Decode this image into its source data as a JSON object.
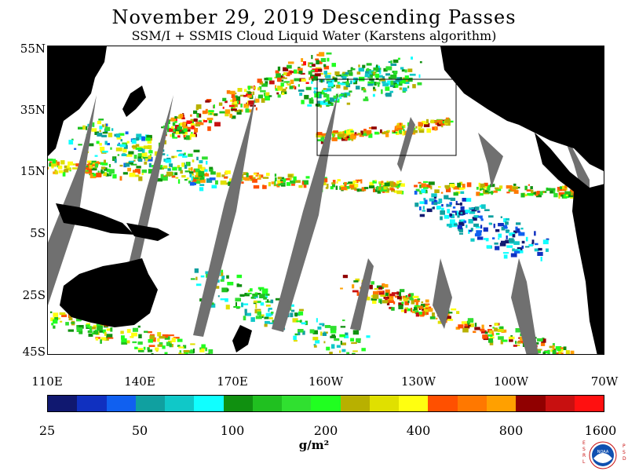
{
  "title": "November 29, 2019  Descending Passes",
  "subtitle": "SSM/I + SSMIS Cloud Liquid Water (Karstens algorithm)",
  "latitude_labels": [
    "55N",
    "35N",
    "15N",
    "5S",
    "25S",
    "45S"
  ],
  "longitude_labels": [
    "110E",
    "140E",
    "170E",
    "160W",
    "130W",
    "100W",
    "70W"
  ],
  "colorbar": {
    "labels": [
      "25",
      "50",
      "100",
      "200",
      "400",
      "800",
      "1600"
    ],
    "units": "g/m²",
    "colors": [
      "#101870",
      "#1030c0",
      "#1060f0",
      "#10a0a0",
      "#10c8c8",
      "#10ffff",
      "#109010",
      "#20c020",
      "#30e030",
      "#20ff20",
      "#b8b000",
      "#e0e000",
      "#ffff10",
      "#ff5000",
      "#ff7800",
      "#ffa000",
      "#900000",
      "#c81010",
      "#ff1010"
    ]
  },
  "colors": {
    "land": "#000000",
    "no_data_swath": "#707070",
    "clear_ocean": "#ffffff"
  },
  "logo": {
    "left_letters": "ESRL",
    "right_letters": "PSD",
    "center_text": "NOAA"
  }
}
